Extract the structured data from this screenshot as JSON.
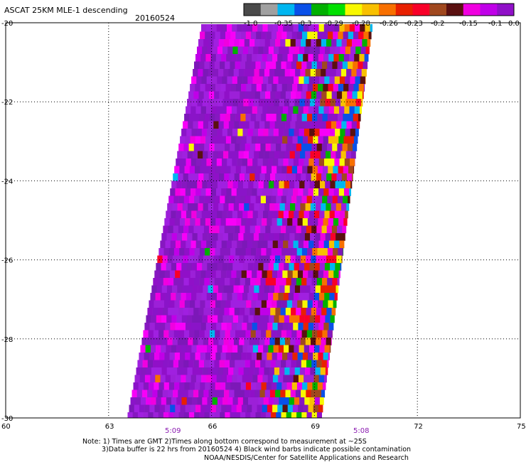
{
  "header": {
    "title": "ASCAT 25KM MLE-1 descending",
    "date": "20160524"
  },
  "colorbar": {
    "colors": [
      "#4a4a4a",
      "#a0a0a0",
      "#00b6f0",
      "#0a50e8",
      "#00b000",
      "#00e000",
      "#f8f800",
      "#f8c000",
      "#f87000",
      "#e82000",
      "#f80028",
      "#a0481e",
      "#5a1010",
      "#f000e0",
      "#c000e8",
      "#9010c8"
    ],
    "labels": [
      "-1.0",
      "-0.35",
      "-0.3",
      "-0.29",
      "-0.28",
      "-0.26",
      "-0.23",
      "-0.2",
      "-0.15",
      "-0.1",
      "0.0"
    ]
  },
  "axes": {
    "lat_labels": [
      "-20",
      "-22",
      "-24",
      "-26",
      "-28",
      "-30"
    ],
    "lon_labels": [
      "60",
      "63",
      "66",
      "69",
      "72",
      "75"
    ],
    "time_labels": [
      "5:09",
      "5:08"
    ]
  },
  "notes": {
    "line1": "Note: 1) Times are GMT 2)Times along bottom correspond to measurement at ~25S",
    "line2": "3)Data buffer is 22 hrs from 20160524 4) Black wind barbs indicate possible contamination",
    "line3": "NOAA/NESDIS/Center for Satellite Applications and Research"
  }
}
